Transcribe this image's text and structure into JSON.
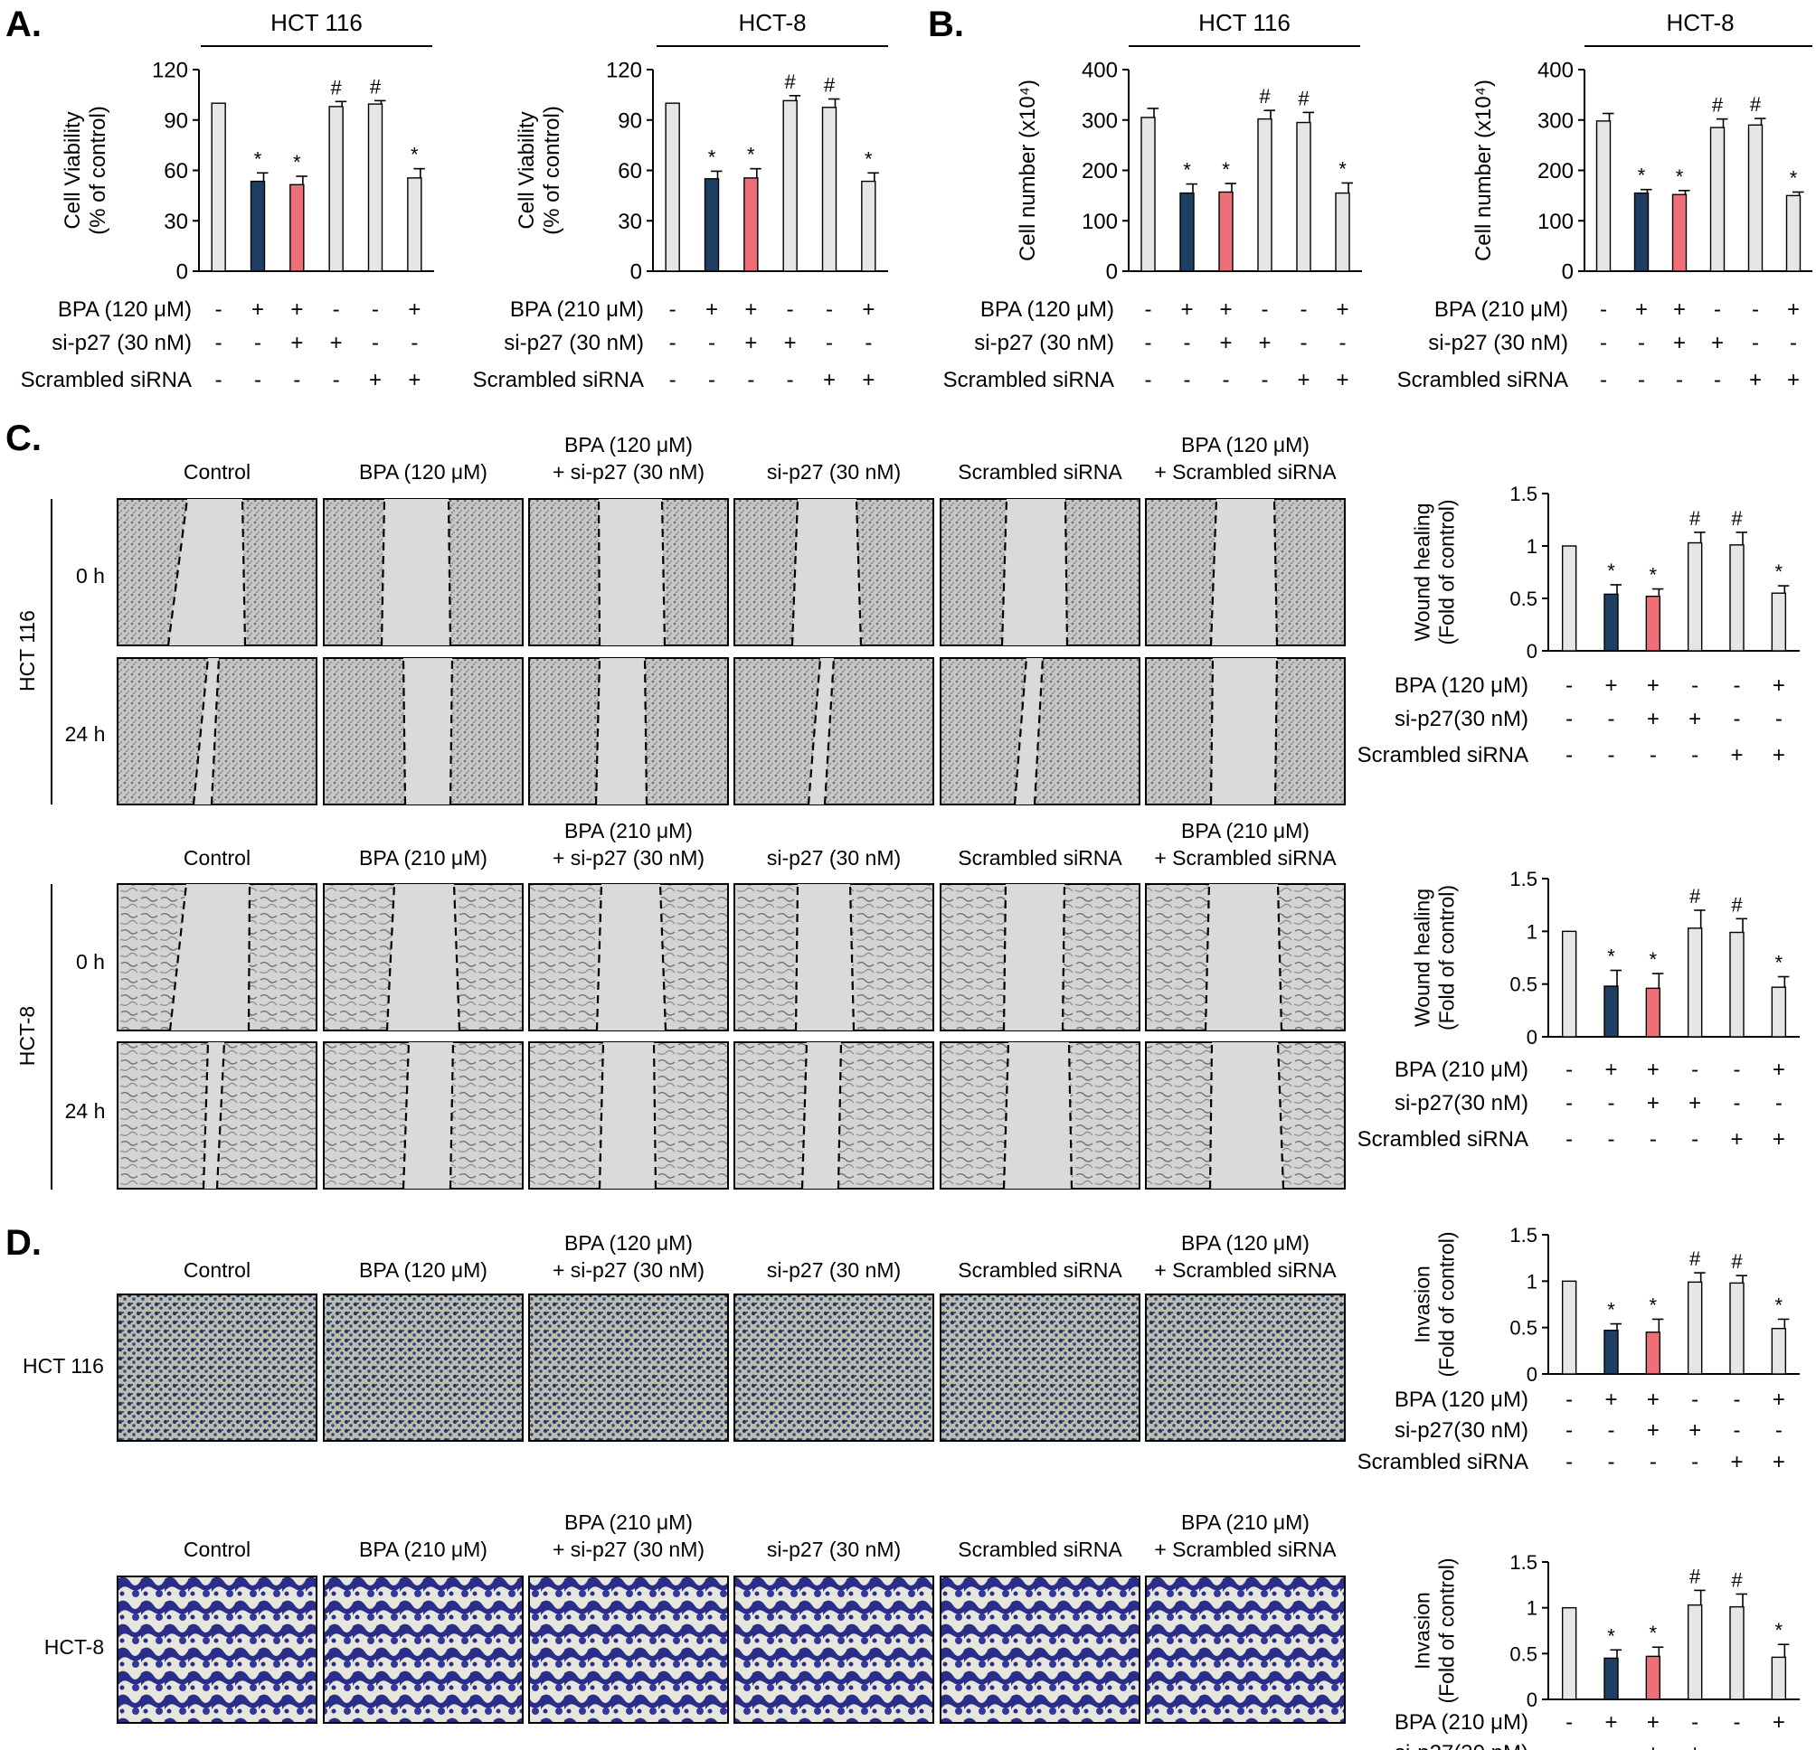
{
  "panels": {
    "A": "A.",
    "B": "B.",
    "C": "C.",
    "D": "D."
  },
  "mu": "μ",
  "symbols": {
    "plus": "+",
    "minus": "-",
    "star": "*",
    "hash": "#"
  },
  "colors": {
    "control": "#e6e6e6",
    "bpa": "#1f3e63",
    "sip27": "#ef6f78",
    "outline": "#000000"
  },
  "cell_lines": {
    "hct116": "HCT 116",
    "hct8": "HCT-8"
  },
  "time_points": {
    "t0": "0 h",
    "t24": "24 h"
  },
  "row_labels": {
    "bpa120": "BPA (120 μM)",
    "bpa210": "BPA (210 μM)",
    "sip27": "si-p27 (30 nM)",
    "sip27_nospace": "si-p27(30 nM)",
    "scrambled": "Scrambled siRNA"
  },
  "image_headers": {
    "hct116": [
      [
        "Control"
      ],
      [
        "BPA (120 μM)"
      ],
      [
        "BPA (120 μM)",
        "+ si-p27 (30 nM)"
      ],
      [
        "si-p27 (30 nM)"
      ],
      [
        "Scrambled siRNA"
      ],
      [
        "BPA (120 μM)",
        "+ Scrambled siRNA"
      ]
    ],
    "hct8": [
      [
        "Control"
      ],
      [
        "BPA (210 μM)"
      ],
      [
        "BPA (210 μM)",
        "+ si-p27 (30 nM)"
      ],
      [
        "si-p27 (30 nM)"
      ],
      [
        "Scrambled siRNA"
      ],
      [
        "BPA (210 μM)",
        "+ Scrambled siRNA"
      ]
    ]
  },
  "treatment_matrix": {
    "bpa": [
      "-",
      "+",
      "+",
      "-",
      "-",
      "+"
    ],
    "sip27": [
      "-",
      "-",
      "+",
      "+",
      "-",
      "-"
    ],
    "scrambled": [
      "-",
      "-",
      "-",
      "-",
      "+",
      "+"
    ]
  },
  "chart_data": [
    {
      "type": "bar",
      "panel": "A",
      "title": "HCT 116",
      "ylabel": [
        "Cell Viability",
        "(% of control)"
      ],
      "ylim": [
        0,
        120
      ],
      "yticks": [
        0,
        30,
        60,
        90,
        120
      ],
      "values": [
        100,
        53.5,
        51.5,
        98,
        99.5,
        55.5
      ],
      "errors": [
        0,
        5,
        5,
        3,
        2,
        5.5
      ],
      "marks": [
        "",
        "*",
        "*",
        "#",
        "#",
        "*"
      ],
      "bpa_label": "BPA (120 μM)"
    },
    {
      "type": "bar",
      "panel": "A",
      "title": "HCT-8",
      "ylabel": [
        "Cell Viability",
        "(% of control)"
      ],
      "ylim": [
        0,
        120
      ],
      "yticks": [
        0,
        30,
        60,
        90,
        120
      ],
      "values": [
        100,
        55,
        55.5,
        101.5,
        97.5,
        53.5
      ],
      "errors": [
        0,
        4.5,
        5.5,
        3,
        5,
        5
      ],
      "marks": [
        "",
        "*",
        "*",
        "#",
        "#",
        "*"
      ],
      "bpa_label": "BPA (210 μM)"
    },
    {
      "type": "bar",
      "panel": "B",
      "title": "HCT 116",
      "ylabel": [
        "Cell number (x10⁴)"
      ],
      "ylim": [
        0,
        400
      ],
      "yticks": [
        0,
        100,
        200,
        300,
        400
      ],
      "values": [
        305,
        155,
        157,
        302,
        295,
        155
      ],
      "errors": [
        18,
        18,
        17,
        17,
        20,
        20
      ],
      "marks": [
        "",
        "*",
        "*",
        "#",
        "#",
        "*"
      ],
      "bpa_label": "BPA (120 μM)"
    },
    {
      "type": "bar",
      "panel": "B",
      "title": "HCT-8",
      "ylabel": [
        "Cell number (x10⁴)"
      ],
      "ylim": [
        0,
        400
      ],
      "yticks": [
        0,
        100,
        200,
        300,
        400
      ],
      "values": [
        298,
        155,
        152,
        285,
        290,
        150
      ],
      "errors": [
        15,
        7,
        8,
        17,
        13,
        7
      ],
      "marks": [
        "",
        "*",
        "*",
        "#",
        "#",
        "*"
      ],
      "bpa_label": "BPA (210 μM)"
    },
    {
      "type": "bar",
      "panel": "C",
      "title": "",
      "ylabel": [
        "Wound healing",
        "(Fold of control)"
      ],
      "ylim": [
        0,
        1.5
      ],
      "yticks": [
        0,
        0.5,
        1,
        1.5
      ],
      "values": [
        1,
        0.54,
        0.52,
        1.03,
        1.01,
        0.55
      ],
      "errors": [
        0,
        0.09,
        0.07,
        0.1,
        0.12,
        0.07
      ],
      "marks": [
        "",
        "*",
        "*",
        "#",
        "#",
        "*"
      ],
      "bpa_label": "BPA (120 μM)"
    },
    {
      "type": "bar",
      "panel": "C",
      "title": "",
      "ylabel": [
        "Wound healing",
        "(Fold of control)"
      ],
      "ylim": [
        0,
        1.5
      ],
      "yticks": [
        0,
        0.5,
        1,
        1.5
      ],
      "values": [
        1,
        0.48,
        0.46,
        1.03,
        0.99,
        0.47
      ],
      "errors": [
        0,
        0.15,
        0.14,
        0.17,
        0.13,
        0.1
      ],
      "marks": [
        "",
        "*",
        "*",
        "#",
        "#",
        "*"
      ],
      "bpa_label": "BPA (210 μM)"
    },
    {
      "type": "bar",
      "panel": "D",
      "title": "",
      "ylabel": [
        "Invasion",
        "(Fold of control)"
      ],
      "ylim": [
        0,
        1.5
      ],
      "yticks": [
        0,
        0.5,
        1,
        1.5
      ],
      "values": [
        1,
        0.47,
        0.45,
        0.99,
        0.98,
        0.49
      ],
      "errors": [
        0,
        0.07,
        0.14,
        0.1,
        0.08,
        0.1
      ],
      "marks": [
        "",
        "*",
        "*",
        "#",
        "#",
        "*"
      ],
      "bpa_label": "BPA (120 μM)"
    },
    {
      "type": "bar",
      "panel": "D",
      "title": "",
      "ylabel": [
        "Invasion",
        "(Fold of control)"
      ],
      "ylim": [
        0,
        1.5
      ],
      "yticks": [
        0,
        0.5,
        1,
        1.5
      ],
      "values": [
        1,
        0.45,
        0.47,
        1.03,
        1.01,
        0.46
      ],
      "errors": [
        0,
        0.09,
        0.1,
        0.16,
        0.14,
        0.14
      ],
      "marks": [
        "",
        "*",
        "*",
        "#",
        "#",
        "*"
      ],
      "bpa_label": "BPA (210 μM)"
    }
  ]
}
